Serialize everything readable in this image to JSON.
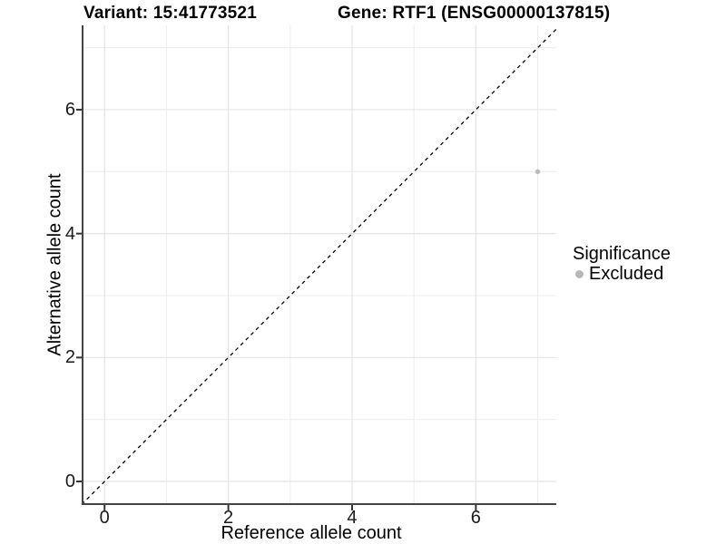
{
  "titles": {
    "variant": "Variant: 15:41773521",
    "gene": "Gene: RTF1 (ENSG00000137815)"
  },
  "axes": {
    "x_label": "Reference allele count",
    "y_label": "Alternative allele count",
    "x_tick_labels": [
      "0",
      "2",
      "4",
      "6"
    ],
    "y_tick_labels": [
      "0",
      "2",
      "4",
      "6"
    ]
  },
  "legend": {
    "title": "Significance",
    "items": [
      {
        "label": "Excluded",
        "color": "#b8b8b8",
        "marker": "circle"
      }
    ]
  },
  "colors": {
    "background": "#ffffff",
    "grid_major": "#e4e4e4",
    "grid_minor": "#ececec",
    "axis_line": "#444444",
    "tick_mark": "#333333",
    "text": "#000000",
    "point": "#bebebe",
    "identity_line": "#000000"
  },
  "chart_data": {
    "type": "scatter",
    "title": "Variant: 15:41773521 — Gene: RTF1 (ENSG00000137815)",
    "xlabel": "Reference allele count",
    "ylabel": "Alternative allele count",
    "xlim": [
      -0.37,
      7.3
    ],
    "ylim": [
      -0.38,
      7.36
    ],
    "x_ticks": [
      0,
      2,
      4,
      6
    ],
    "y_ticks": [
      0,
      2,
      4,
      6
    ],
    "minor_gridlines": [
      1,
      3,
      5,
      7
    ],
    "grid": true,
    "legend_position": "right",
    "identity_line": {
      "style": "dashed",
      "slope": 1,
      "intercept": 0
    },
    "series": [
      {
        "name": "Excluded",
        "color": "#bebebe",
        "points": [
          {
            "x": 7,
            "y": 5
          }
        ]
      }
    ]
  }
}
